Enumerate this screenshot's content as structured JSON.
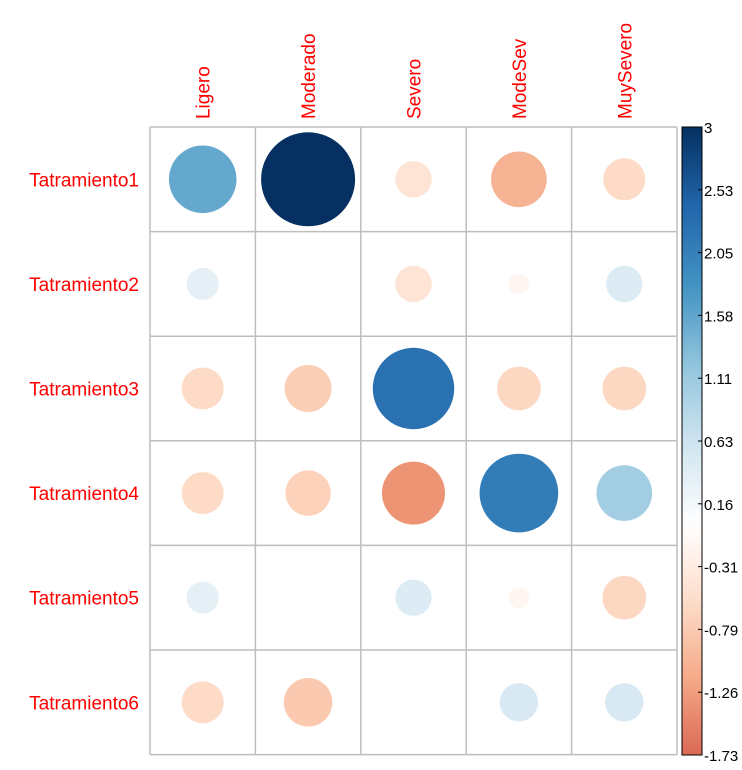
{
  "chart_data": {
    "type": "heatmap",
    "style": "corrplot-circles",
    "rows": [
      "Tatramiento1",
      "Tatramiento2",
      "Tatramiento3",
      "Tatramiento4",
      "Tatramiento5",
      "Tatramiento6"
    ],
    "columns": [
      "Ligero",
      "Moderado",
      "Severo",
      "ModeSev",
      "MuySevero"
    ],
    "values": [
      [
        1.55,
        3.0,
        -0.45,
        -1.05,
        -0.6
      ],
      [
        0.35,
        0.0,
        -0.45,
        -0.15,
        0.45
      ],
      [
        -0.6,
        -0.75,
        2.25,
        -0.65,
        -0.65
      ],
      [
        -0.6,
        -0.7,
        -1.35,
        2.1,
        1.05
      ],
      [
        0.35,
        0.0,
        0.45,
        -0.15,
        -0.65
      ],
      [
        -0.6,
        -0.8,
        0.0,
        0.5,
        0.5
      ]
    ],
    "color_scale": {
      "min": -1.73,
      "max": 3,
      "tick_labels": [
        "3",
        "2.53",
        "2.05",
        "1.58",
        "1.11",
        "0.63",
        "0.16",
        "-0.31",
        "-0.79",
        "-1.26",
        "-1.73"
      ],
      "colors": [
        "#67001F",
        "#B2182B",
        "#D6604D",
        "#F4A582",
        "#FDDBC7",
        "#FFFFFF",
        "#D1E5F0",
        "#92C5DE",
        "#4393C3",
        "#2166AC",
        "#053061"
      ]
    },
    "label_color": "#FF0000",
    "grid_color": "#BEBEBE",
    "legend_position": "right"
  }
}
